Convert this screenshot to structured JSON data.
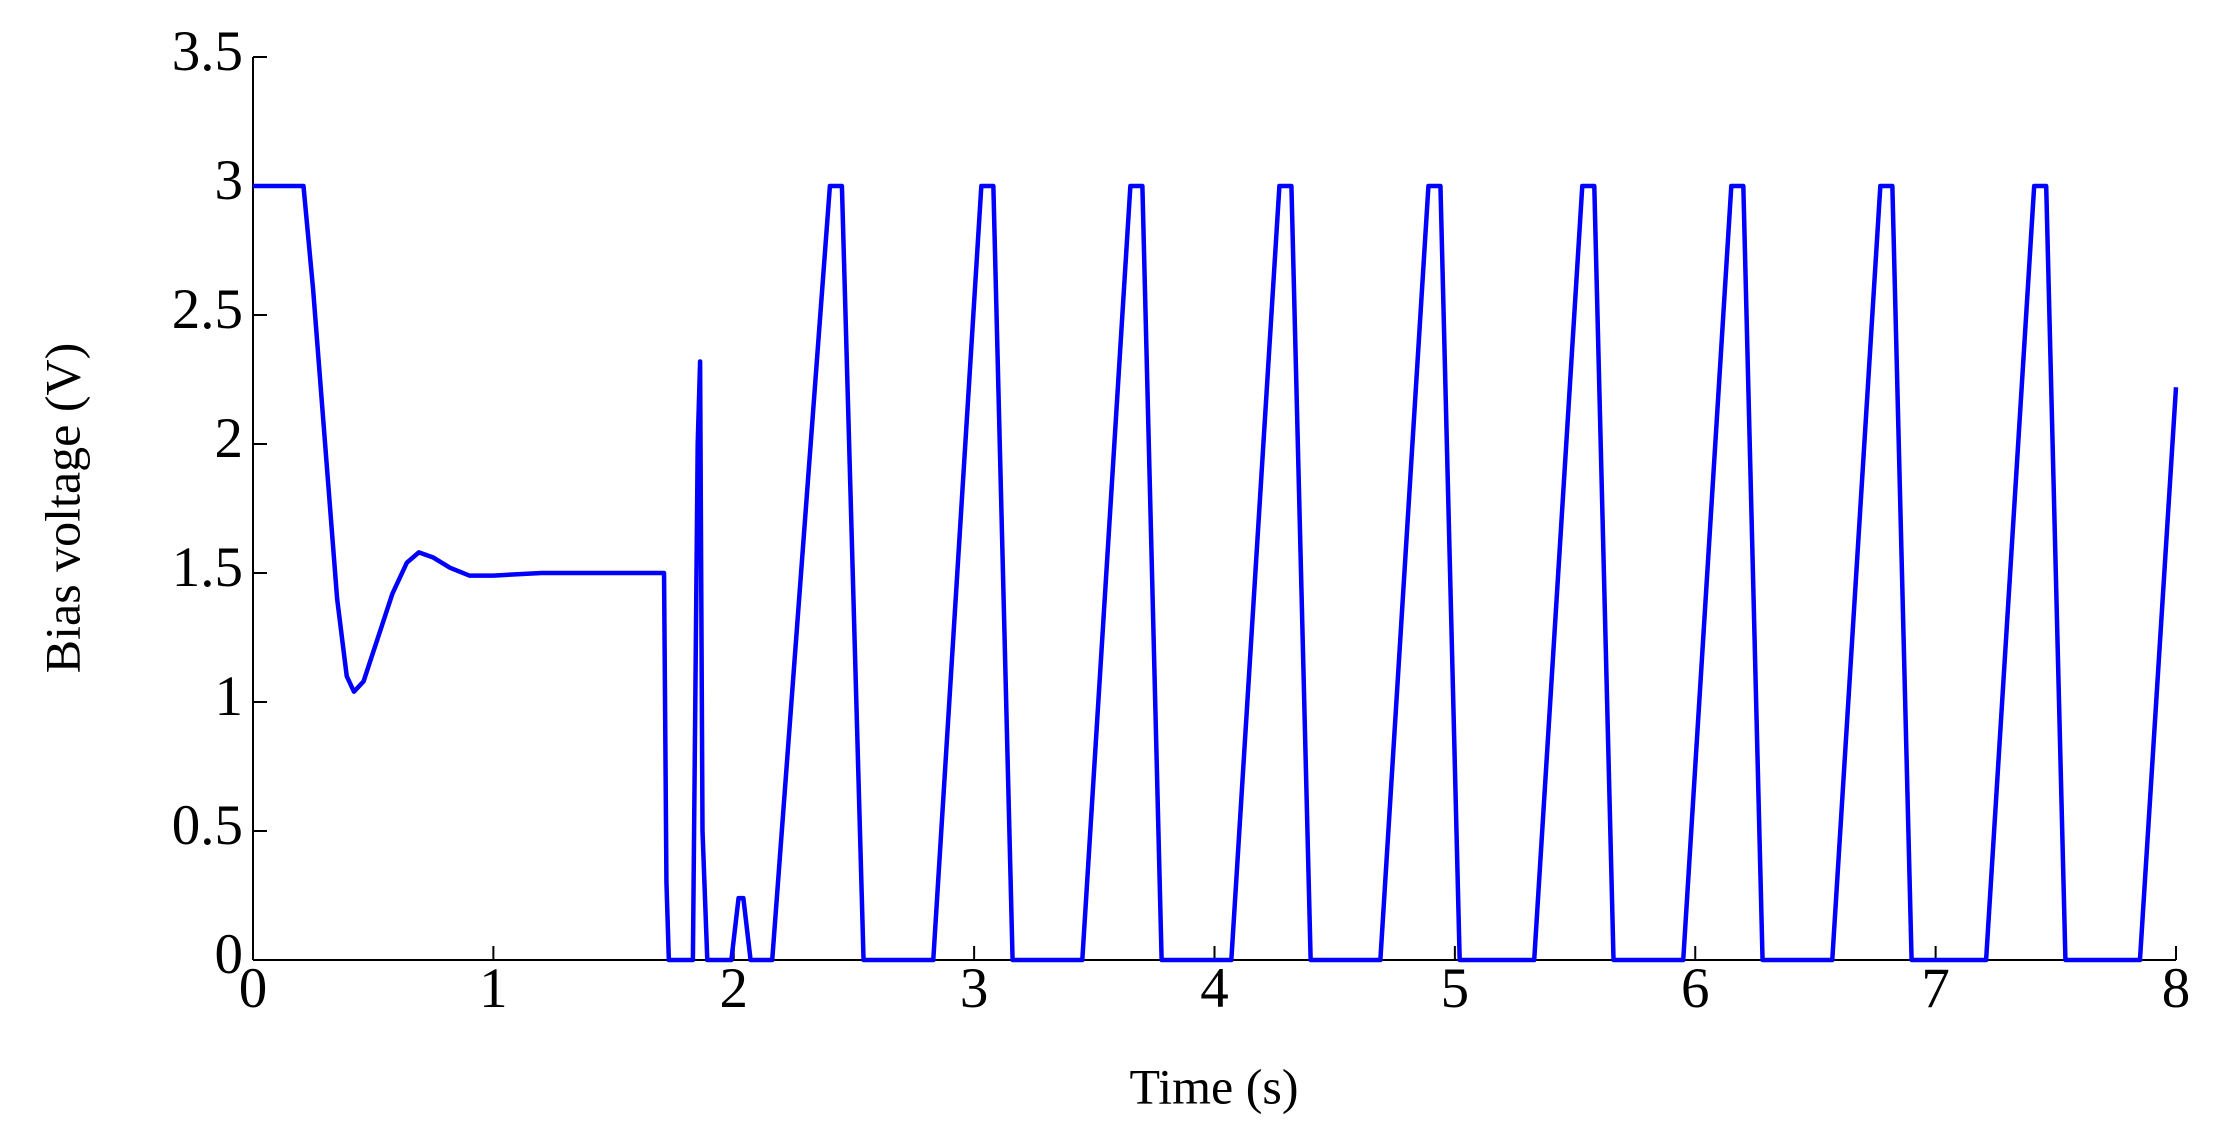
{
  "chart_data": {
    "type": "line",
    "xlabel": "Time (s)",
    "ylabel": "Bias voltage (V)",
    "xlim": [
      0,
      8
    ],
    "xticks": [
      0,
      1,
      2,
      3,
      4,
      5,
      6,
      7,
      8
    ],
    "ylim": [
      0,
      3.5
    ],
    "yticks": [
      0,
      0.5,
      1,
      1.5,
      2,
      2.5,
      3,
      3.5
    ],
    "grid": false,
    "x": [
      0,
      0.21,
      0.25,
      0.3,
      0.35,
      0.39,
      0.42,
      0.46,
      0.52,
      0.58,
      0.64,
      0.69,
      0.75,
      0.82,
      0.9,
      1.0,
      1.2,
      1.4,
      1.71,
      1.72,
      1.73,
      1.83,
      1.85,
      1.86,
      1.87,
      1.89,
      1.99,
      2.02,
      2.04,
      2.07,
      2.16,
      2.4,
      2.45,
      2.54,
      2.83,
      3.03,
      3.08,
      3.16,
      3.45,
      3.65,
      3.7,
      3.78,
      4.07,
      4.27,
      4.32,
      4.4,
      4.69,
      4.89,
      4.94,
      5.02,
      5.33,
      5.53,
      5.58,
      5.66,
      5.95,
      6.15,
      6.2,
      6.28,
      6.57,
      6.77,
      6.82,
      6.9,
      7.21,
      7.41,
      7.46,
      7.54,
      7.85,
      8.0
    ],
    "series": [
      {
        "color": "#0000ff",
        "values": [
          3,
          3,
          2.6,
          2.0,
          1.4,
          1.1,
          1.04,
          1.08,
          1.25,
          1.42,
          1.54,
          1.58,
          1.56,
          1.52,
          1.49,
          1.49,
          1.5,
          1.5,
          1.5,
          0.3,
          0,
          0,
          2.0,
          2.32,
          0.5,
          0,
          0,
          0.24,
          0.24,
          0,
          0,
          3,
          3,
          0,
          0,
          3,
          3,
          0,
          0,
          3,
          3,
          0,
          0,
          3,
          3,
          0,
          0,
          3,
          3,
          0,
          0,
          3,
          3,
          0,
          0,
          3,
          3,
          0,
          0,
          3,
          3,
          0,
          0,
          3,
          3,
          0,
          0,
          2.22
        ]
      }
    ]
  }
}
